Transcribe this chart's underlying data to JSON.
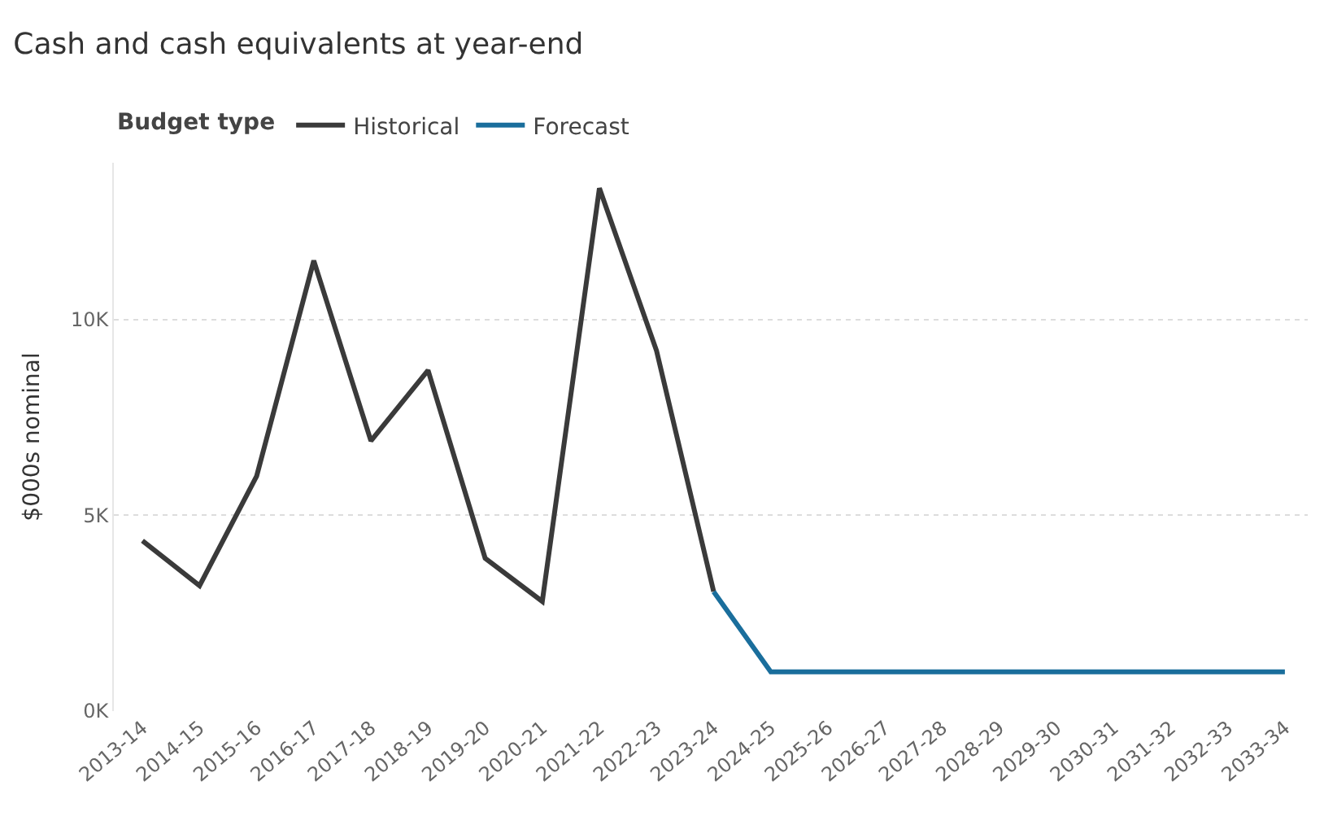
{
  "chart_data": {
    "type": "line",
    "title": "Cash and cash equivalents at year-end",
    "ylabel": "$000s nominal",
    "legend_title": "Budget type",
    "categories": [
      "2013-14",
      "2014-15",
      "2015-16",
      "2016-17",
      "2017-18",
      "2018-19",
      "2019-20",
      "2020-21",
      "2021-22",
      "2022-23",
      "2023-24",
      "2024-25",
      "2025-26",
      "2026-27",
      "2027-28",
      "2028-29",
      "2029-30",
      "2030-31",
      "2031-32",
      "2032-33",
      "2033-34"
    ],
    "series": [
      {
        "name": "Historical",
        "color": "#3a3a3a",
        "values": [
          4350,
          3200,
          6000,
          11500,
          6900,
          8700,
          3900,
          2800,
          13350,
          9200,
          3050,
          null,
          null,
          null,
          null,
          null,
          null,
          null,
          null,
          null,
          null
        ]
      },
      {
        "name": "Forecast",
        "color": "#1a6e9c",
        "values": [
          null,
          null,
          null,
          null,
          null,
          null,
          null,
          null,
          null,
          null,
          3050,
          1000,
          1000,
          1000,
          1000,
          1000,
          1000,
          1000,
          1000,
          1000,
          1000
        ]
      }
    ],
    "ylim": [
      0,
      14000
    ],
    "yticks": [
      {
        "value": 0,
        "label": "0K"
      },
      {
        "value": 5000,
        "label": "5K"
      },
      {
        "value": 10000,
        "label": "10K"
      }
    ],
    "grid": "y",
    "legend": "top left",
    "marker": "none",
    "line_style": "solid"
  }
}
